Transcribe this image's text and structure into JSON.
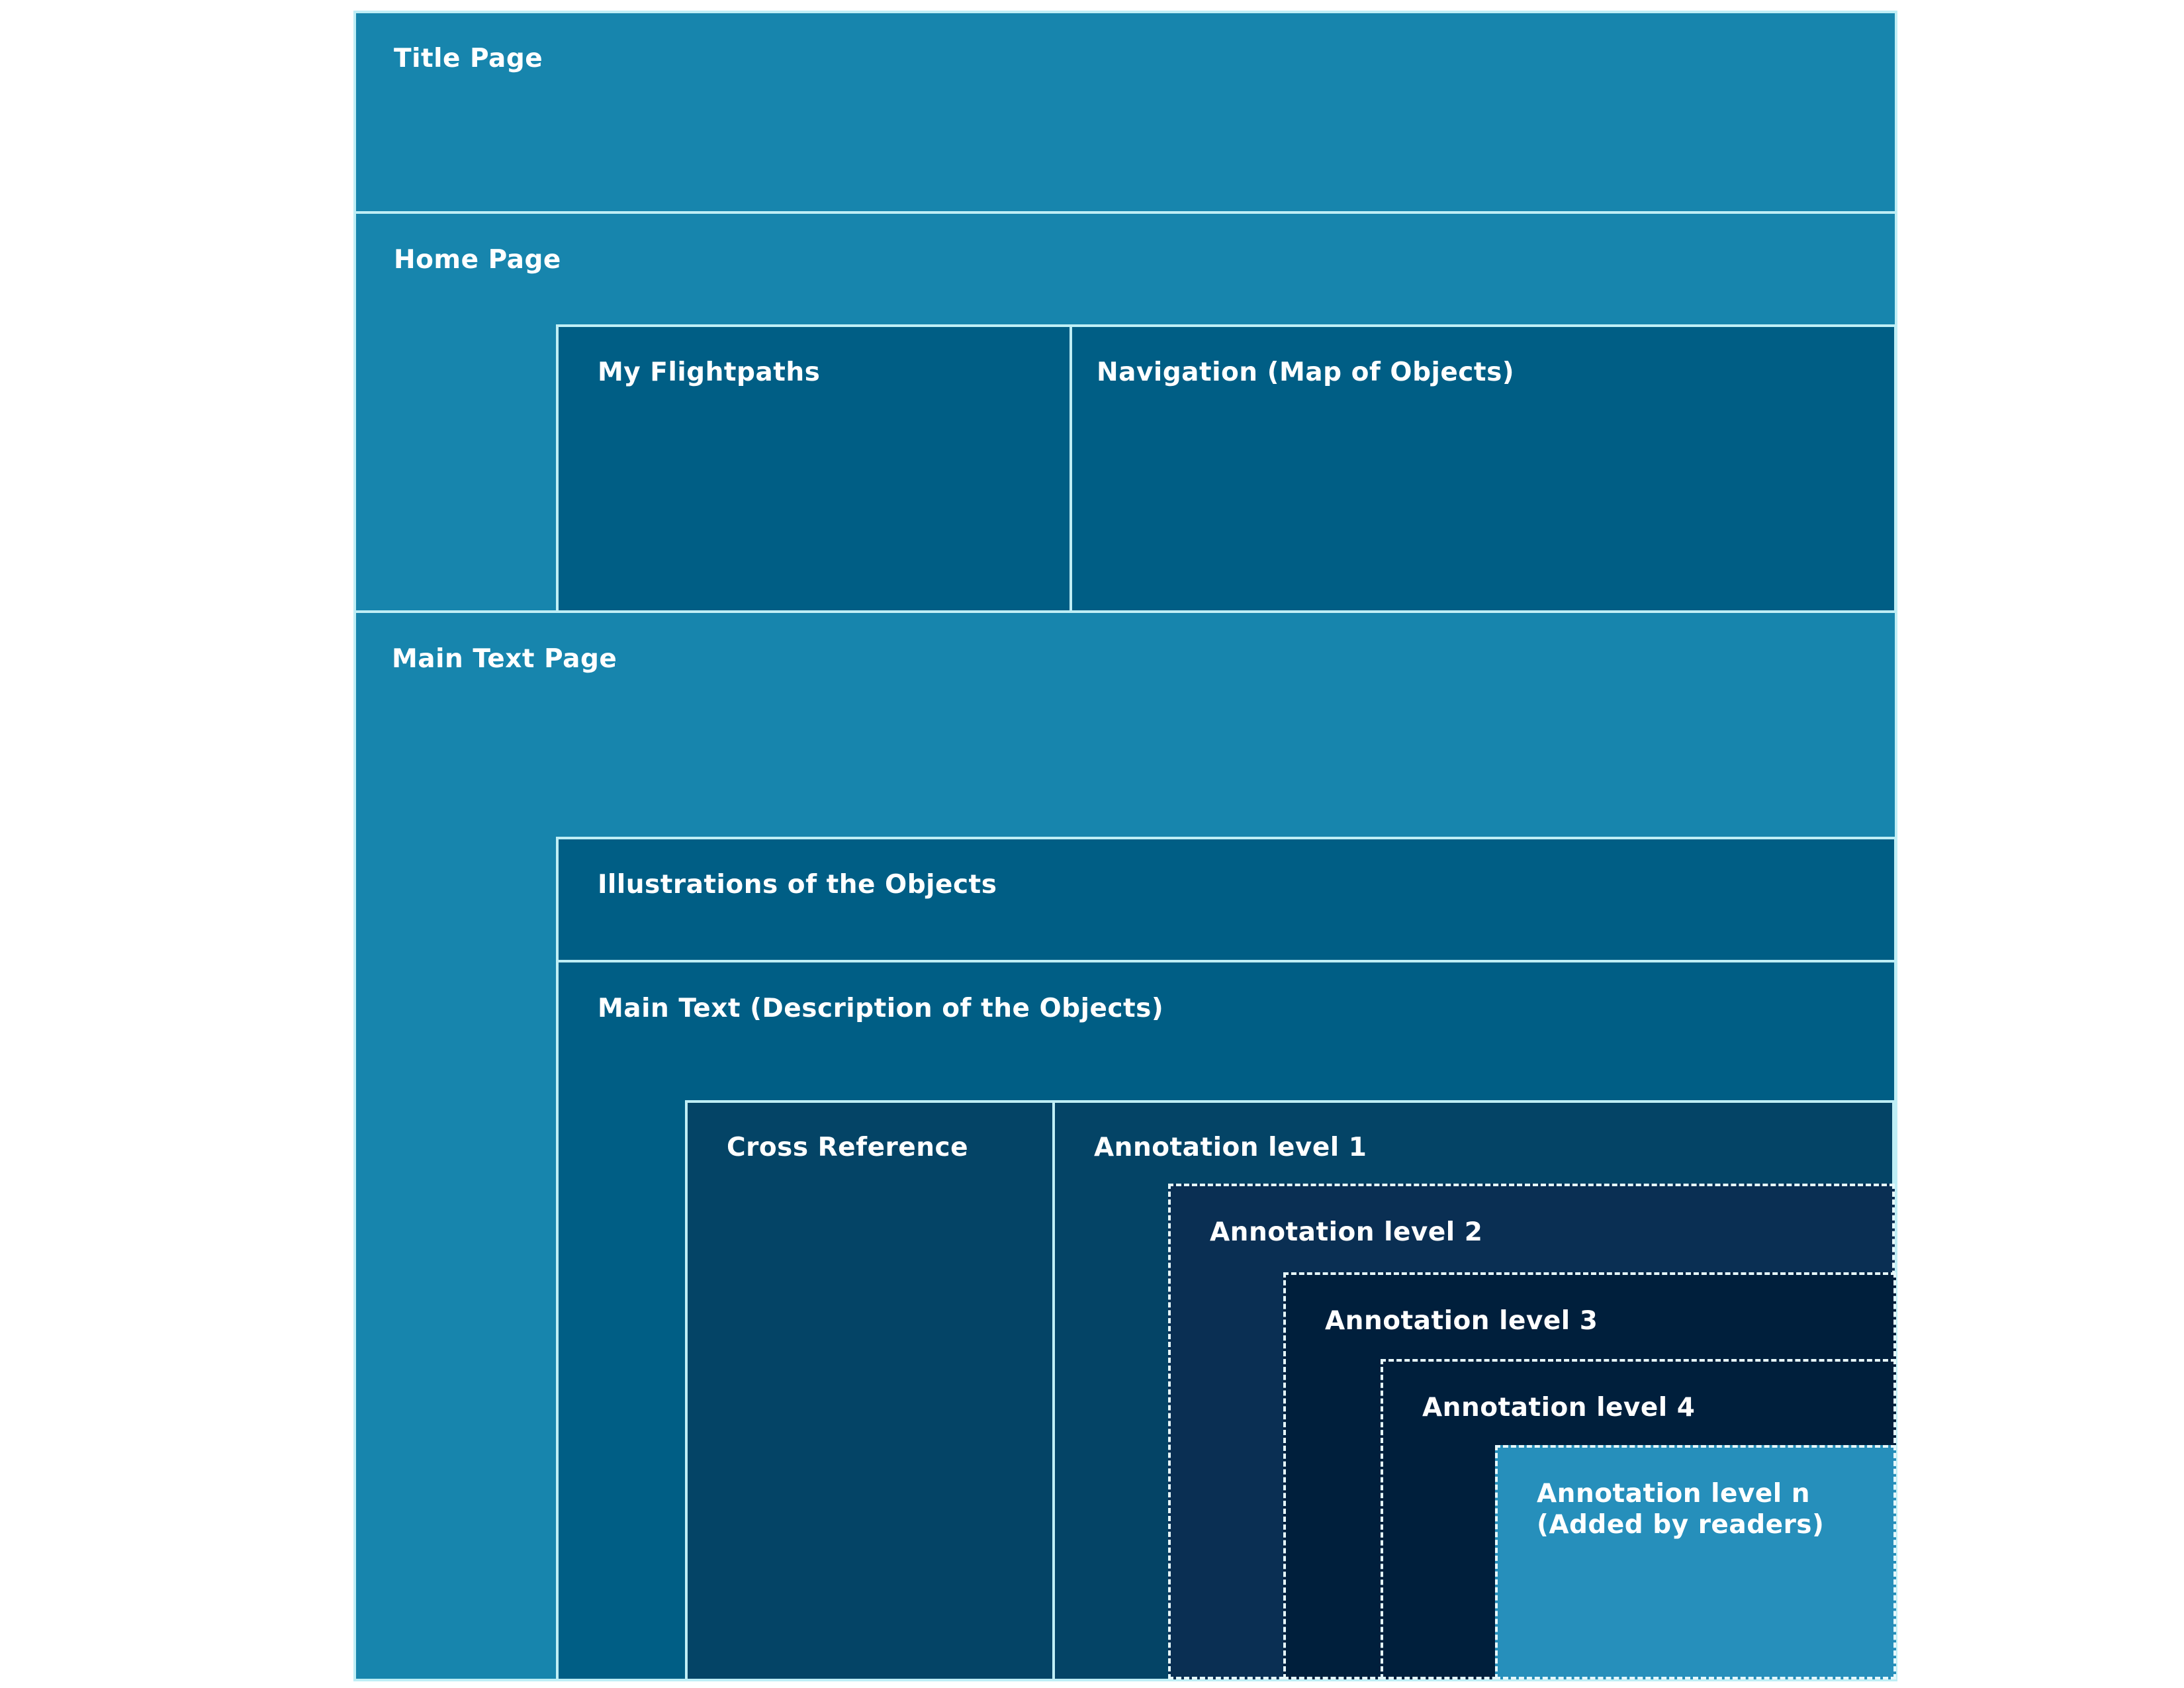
{
  "diagram": {
    "title_page": "Title Page",
    "home_page": {
      "label": "Home Page",
      "my_flightpaths": "My Flightpaths",
      "navigation": "Navigation (Map of Objects)"
    },
    "main_text_page": {
      "label": "Main Text Page",
      "illustrations": "Illustrations of the Objects",
      "main_text": {
        "label": "Main Text (Description of the Objects)",
        "cross_reference": "Cross Reference",
        "annotation_level_1": "Annotation level 1",
        "annotation_level_2": "Annotation level 2",
        "annotation_level_3": "Annotation level 3",
        "annotation_level_4": "Annotation level 4",
        "annotation_level_n": "Annotation level n",
        "annotation_level_n_note": "(Added by readers)"
      }
    },
    "colors": {
      "page_level": "#1785ad",
      "section_level": "#005e85",
      "cross_reference": "#044466",
      "annotation_level_2": "#0a2f53",
      "annotation_deep": "#001f3c",
      "annotation_level_n": "#268fbb",
      "border": "#bfeef5"
    }
  }
}
